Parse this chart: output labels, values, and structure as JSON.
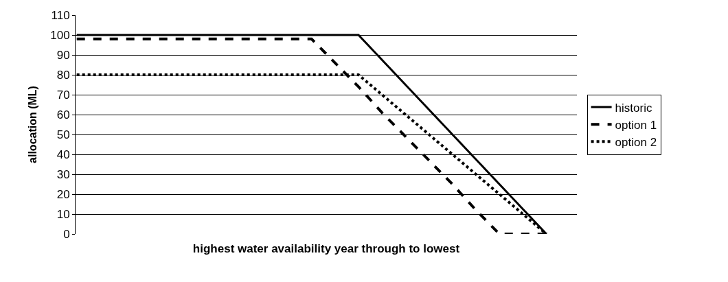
{
  "chart_data": {
    "type": "line",
    "xlabel": "highest water availability year through to lowest",
    "ylabel": "allocation (ML)",
    "categories": [
      null,
      null,
      null,
      null,
      null,
      null,
      null,
      null,
      null,
      null,
      null,
      null,
      null,
      null,
      null,
      null,
      null,
      null,
      null,
      null,
      null
    ],
    "series": [
      {
        "name": "historic",
        "color": "#000000",
        "line_style": "solid",
        "values": [
          100,
          100,
          100,
          100,
          100,
          100,
          100,
          100,
          100,
          100,
          100,
          100,
          100,
          87.5,
          75,
          62.5,
          50,
          37.5,
          25,
          12.5,
          0
        ]
      },
      {
        "name": "option 1",
        "color": "#000000",
        "line_style": "dashed",
        "values": [
          98,
          98,
          98,
          98,
          98,
          98,
          98,
          98,
          98,
          98,
          98,
          86,
          74,
          61,
          49,
          37,
          25,
          12,
          0,
          0,
          0
        ]
      },
      {
        "name": "option 2",
        "color": "#000000",
        "line_style": "dotted",
        "values": [
          80,
          80,
          80,
          80,
          80,
          80,
          80,
          80,
          80,
          80,
          80,
          80,
          80,
          70,
          60,
          50,
          40,
          30,
          20,
          10,
          0
        ]
      }
    ],
    "ylim": [
      0,
      110
    ],
    "yticks": [
      0,
      10,
      20,
      30,
      40,
      50,
      60,
      70,
      80,
      90,
      100,
      110
    ],
    "grid": "y",
    "legend": "right",
    "marker": "none",
    "tick_labels": "y"
  }
}
